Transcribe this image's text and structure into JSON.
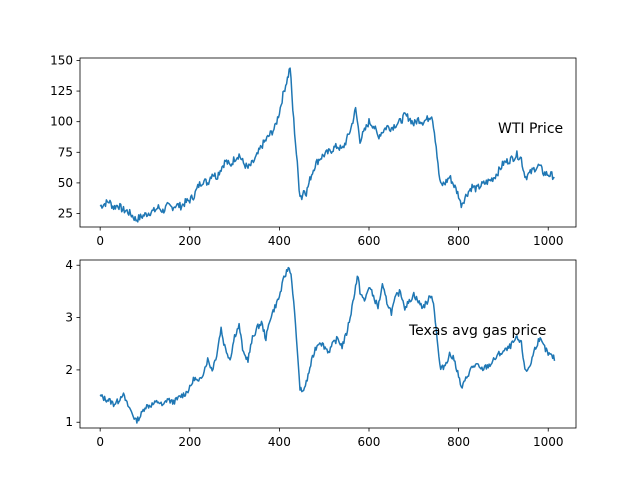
{
  "chart_data": [
    {
      "type": "line",
      "annotation": "WTI Price",
      "color": "#1f77b4",
      "xlim": [
        -45,
        1062
      ],
      "ylim": [
        14,
        152
      ],
      "xticks": [
        0,
        200,
        400,
        600,
        800,
        1000
      ],
      "yticks": [
        25,
        50,
        75,
        100,
        125,
        150
      ],
      "keypoints": [
        [
          0,
          31
        ],
        [
          10,
          33
        ],
        [
          20,
          35
        ],
        [
          30,
          30
        ],
        [
          40,
          32
        ],
        [
          50,
          28
        ],
        [
          60,
          27
        ],
        [
          70,
          24
        ],
        [
          80,
          20
        ],
        [
          90,
          22
        ],
        [
          100,
          24
        ],
        [
          110,
          26
        ],
        [
          120,
          27
        ],
        [
          130,
          30
        ],
        [
          140,
          27
        ],
        [
          150,
          31
        ],
        [
          160,
          30
        ],
        [
          170,
          32
        ],
        [
          180,
          31
        ],
        [
          190,
          34
        ],
        [
          200,
          36
        ],
        [
          210,
          40
        ],
        [
          220,
          48
        ],
        [
          230,
          52
        ],
        [
          240,
          50
        ],
        [
          250,
          58
        ],
        [
          260,
          55
        ],
        [
          270,
          62
        ],
        [
          280,
          68
        ],
        [
          290,
          64
        ],
        [
          300,
          70
        ],
        [
          310,
          73
        ],
        [
          320,
          66
        ],
        [
          330,
          62
        ],
        [
          340,
          66
        ],
        [
          350,
          72
        ],
        [
          360,
          80
        ],
        [
          370,
          85
        ],
        [
          380,
          90
        ],
        [
          390,
          95
        ],
        [
          400,
          108
        ],
        [
          410,
          125
        ],
        [
          420,
          138
        ],
        [
          424,
          145
        ],
        [
          430,
          110
        ],
        [
          440,
          65
        ],
        [
          445,
          42
        ],
        [
          450,
          38
        ],
        [
          455,
          45
        ],
        [
          460,
          42
        ],
        [
          470,
          55
        ],
        [
          480,
          65
        ],
        [
          490,
          70
        ],
        [
          500,
          73
        ],
        [
          510,
          75
        ],
        [
          520,
          78
        ],
        [
          530,
          80
        ],
        [
          540,
          77
        ],
        [
          550,
          85
        ],
        [
          560,
          95
        ],
        [
          570,
          110
        ],
        [
          575,
          98
        ],
        [
          580,
          85
        ],
        [
          590,
          92
        ],
        [
          600,
          100
        ],
        [
          610,
          97
        ],
        [
          620,
          88
        ],
        [
          630,
          92
        ],
        [
          640,
          96
        ],
        [
          650,
          95
        ],
        [
          660,
          98
        ],
        [
          670,
          100
        ],
        [
          680,
          105
        ],
        [
          690,
          103
        ],
        [
          700,
          98
        ],
        [
          710,
          102
        ],
        [
          720,
          100
        ],
        [
          730,
          102
        ],
        [
          740,
          106
        ],
        [
          745,
          95
        ],
        [
          750,
          80
        ],
        [
          755,
          60
        ],
        [
          760,
          48
        ],
        [
          770,
          50
        ],
        [
          780,
          55
        ],
        [
          790,
          48
        ],
        [
          800,
          40
        ],
        [
          805,
          32
        ],
        [
          810,
          35
        ],
        [
          820,
          42
        ],
        [
          830,
          47
        ],
        [
          840,
          45
        ],
        [
          850,
          48
        ],
        [
          860,
          50
        ],
        [
          870,
          52
        ],
        [
          880,
          55
        ],
        [
          890,
          60
        ],
        [
          900,
          66
        ],
        [
          910,
          68
        ],
        [
          920,
          70
        ],
        [
          930,
          73
        ],
        [
          940,
          70
        ],
        [
          945,
          60
        ],
        [
          950,
          55
        ],
        [
          960,
          58
        ],
        [
          970,
          62
        ],
        [
          980,
          64
        ],
        [
          990,
          58
        ],
        [
          1000,
          57
        ],
        [
          1010,
          56
        ],
        [
          1015,
          55
        ]
      ]
    },
    {
      "type": "line",
      "annotation": "Texas avg gas price",
      "color": "#1f77b4",
      "xlim": [
        -45,
        1062
      ],
      "ylim": [
        0.89,
        4.1
      ],
      "xticks": [
        0,
        200,
        400,
        600,
        800,
        1000
      ],
      "yticks": [
        1,
        2,
        3,
        4
      ],
      "keypoints": [
        [
          0,
          1.5
        ],
        [
          10,
          1.45
        ],
        [
          20,
          1.42
        ],
        [
          30,
          1.35
        ],
        [
          40,
          1.4
        ],
        [
          50,
          1.55
        ],
        [
          60,
          1.35
        ],
        [
          70,
          1.2
        ],
        [
          80,
          1.02
        ],
        [
          90,
          1.12
        ],
        [
          100,
          1.3
        ],
        [
          110,
          1.32
        ],
        [
          120,
          1.35
        ],
        [
          130,
          1.4
        ],
        [
          140,
          1.3
        ],
        [
          150,
          1.45
        ],
        [
          160,
          1.38
        ],
        [
          170,
          1.42
        ],
        [
          180,
          1.5
        ],
        [
          190,
          1.55
        ],
        [
          200,
          1.65
        ],
        [
          210,
          1.85
        ],
        [
          220,
          1.75
        ],
        [
          230,
          1.95
        ],
        [
          240,
          2.2
        ],
        [
          250,
          2.0
        ],
        [
          260,
          2.3
        ],
        [
          270,
          2.8
        ],
        [
          275,
          2.55
        ],
        [
          280,
          2.4
        ],
        [
          290,
          2.2
        ],
        [
          300,
          2.65
        ],
        [
          310,
          2.85
        ],
        [
          320,
          2.3
        ],
        [
          330,
          2.2
        ],
        [
          340,
          2.6
        ],
        [
          350,
          2.8
        ],
        [
          360,
          2.9
        ],
        [
          370,
          2.6
        ],
        [
          380,
          3.0
        ],
        [
          390,
          3.2
        ],
        [
          400,
          3.4
        ],
        [
          410,
          3.75
        ],
        [
          420,
          3.95
        ],
        [
          425,
          3.9
        ],
        [
          430,
          3.5
        ],
        [
          440,
          2.4
        ],
        [
          445,
          1.7
        ],
        [
          450,
          1.55
        ],
        [
          460,
          1.75
        ],
        [
          470,
          2.1
        ],
        [
          480,
          2.4
        ],
        [
          490,
          2.55
        ],
        [
          500,
          2.45
        ],
        [
          510,
          2.35
        ],
        [
          520,
          2.5
        ],
        [
          530,
          2.6
        ],
        [
          540,
          2.45
        ],
        [
          550,
          2.7
        ],
        [
          560,
          3.1
        ],
        [
          570,
          3.6
        ],
        [
          575,
          3.8
        ],
        [
          580,
          3.5
        ],
        [
          590,
          3.3
        ],
        [
          600,
          3.6
        ],
        [
          610,
          3.4
        ],
        [
          620,
          3.2
        ],
        [
          630,
          3.6
        ],
        [
          640,
          3.3
        ],
        [
          650,
          3.1
        ],
        [
          660,
          3.4
        ],
        [
          670,
          3.5
        ],
        [
          680,
          3.2
        ],
        [
          690,
          3.3
        ],
        [
          700,
          3.45
        ],
        [
          710,
          3.3
        ],
        [
          720,
          3.2
        ],
        [
          730,
          3.3
        ],
        [
          740,
          3.45
        ],
        [
          745,
          3.2
        ],
        [
          750,
          2.8
        ],
        [
          755,
          2.3
        ],
        [
          760,
          2.0
        ],
        [
          770,
          2.1
        ],
        [
          780,
          2.3
        ],
        [
          790,
          2.2
        ],
        [
          800,
          1.9
        ],
        [
          805,
          1.65
        ],
        [
          810,
          1.7
        ],
        [
          820,
          1.9
        ],
        [
          830,
          2.05
        ],
        [
          840,
          2.1
        ],
        [
          850,
          2.0
        ],
        [
          860,
          2.05
        ],
        [
          870,
          2.1
        ],
        [
          880,
          2.2
        ],
        [
          890,
          2.3
        ],
        [
          900,
          2.35
        ],
        [
          910,
          2.4
        ],
        [
          920,
          2.5
        ],
        [
          930,
          2.6
        ],
        [
          940,
          2.5
        ],
        [
          945,
          2.2
        ],
        [
          950,
          1.95
        ],
        [
          960,
          2.1
        ],
        [
          970,
          2.4
        ],
        [
          980,
          2.6
        ],
        [
          990,
          2.45
        ],
        [
          1000,
          2.3
        ],
        [
          1010,
          2.25
        ],
        [
          1015,
          2.2
        ]
      ]
    }
  ]
}
